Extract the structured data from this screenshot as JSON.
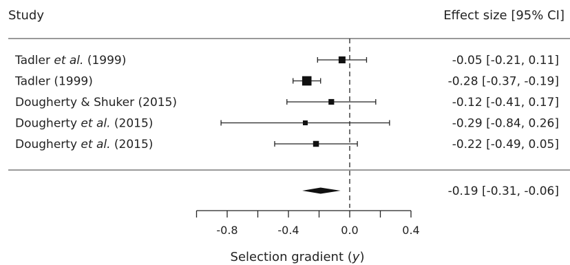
{
  "chart_data": {
    "type": "forest",
    "column_headers": {
      "study": "Study",
      "effect": "Effect size [95% CI]"
    },
    "studies": [
      {
        "name": "Tadler",
        "name_italic": " et al.",
        "name_suffix": " (1999)",
        "effect": -0.05,
        "ci": [
          -0.21,
          0.11
        ],
        "label": "-0.05 [-0.21, 0.11]"
      },
      {
        "name": "Tadler (1999)",
        "name_italic": "",
        "name_suffix": "",
        "effect": -0.28,
        "ci": [
          -0.37,
          -0.19
        ],
        "label": "-0.28 [-0.37, -0.19]"
      },
      {
        "name": "Dougherty & Shuker (2015)",
        "name_italic": "",
        "name_suffix": "",
        "effect": -0.12,
        "ci": [
          -0.41,
          0.17
        ],
        "label": "-0.12 [-0.41, 0.17]"
      },
      {
        "name": "Dougherty",
        "name_italic": " et al.",
        "name_suffix": " (2015)",
        "effect": -0.29,
        "ci": [
          -0.84,
          0.26
        ],
        "label": "-0.29 [-0.84, 0.26]"
      },
      {
        "name": "Dougherty",
        "name_italic": " et al.",
        "name_suffix": " (2015)",
        "effect": -0.22,
        "ci": [
          -0.49,
          0.05
        ],
        "label": "-0.22 [-0.49, 0.05]"
      }
    ],
    "study_weights": [
      1.0,
      1.6,
      0.7,
      0.5,
      0.75
    ],
    "summary": {
      "effect": -0.19,
      "ci": [
        -0.31,
        -0.06
      ],
      "label": "-0.19 [-0.31, -0.06]"
    },
    "x_axis": {
      "label_prefix": "Selection gradient (",
      "label_symbol": "y",
      "label_suffix": ")",
      "ticks": [
        -0.8,
        -0.4,
        0.0,
        0.4
      ],
      "tick_labels": [
        "-0.8",
        "-0.4",
        "0.0",
        "0.4"
      ],
      "range": [
        -1.0,
        0.4
      ],
      "reference_line": 0
    },
    "grid": false
  }
}
